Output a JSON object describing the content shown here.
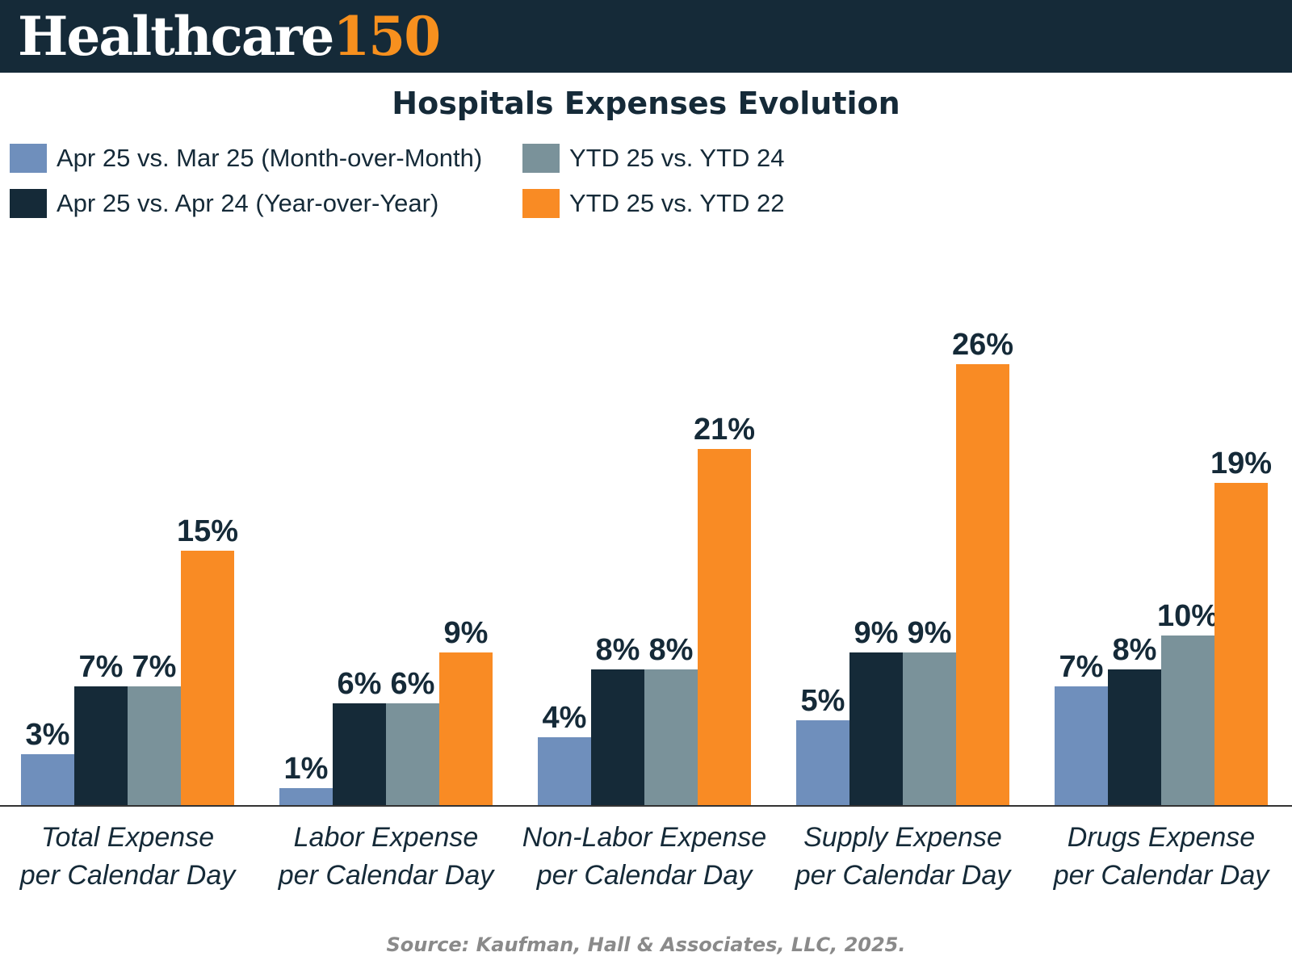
{
  "header": {
    "logo_word": "Healthcare",
    "logo_number": "150"
  },
  "chart_data": {
    "type": "bar",
    "title": "Hospitals Expenses Evolution",
    "categories": [
      [
        "Total Expense",
        "per Calendar Day"
      ],
      [
        "Labor Expense",
        "per Calendar Day"
      ],
      [
        "Non-Labor Expense",
        "per Calendar Day"
      ],
      [
        "Supply Expense",
        "per Calendar Day"
      ],
      [
        "Drugs Expense",
        "per Calendar Day"
      ]
    ],
    "series": [
      {
        "name": "Apr 25 vs. Mar 25 (Month-over-Month)",
        "color": "#6f8fbc",
        "values": [
          3,
          1,
          4,
          5,
          7
        ]
      },
      {
        "name": "Apr 25 vs. Apr 24 (Year-over-Year)",
        "color": "#152a38",
        "values": [
          7,
          6,
          8,
          9,
          8
        ]
      },
      {
        "name": "YTD 25 vs. YTD 24",
        "color": "#7a929a",
        "values": [
          7,
          6,
          8,
          9,
          10
        ]
      },
      {
        "name": "YTD 25 vs. YTD 22",
        "color": "#f98b24",
        "values": [
          15,
          9,
          21,
          26,
          19
        ]
      }
    ],
    "value_suffix": "%",
    "ylim": [
      0,
      26
    ],
    "grid": false,
    "legend_position": "top-left"
  },
  "source": "Source: Kaufman, Hall & Associates, LLC, 2025."
}
